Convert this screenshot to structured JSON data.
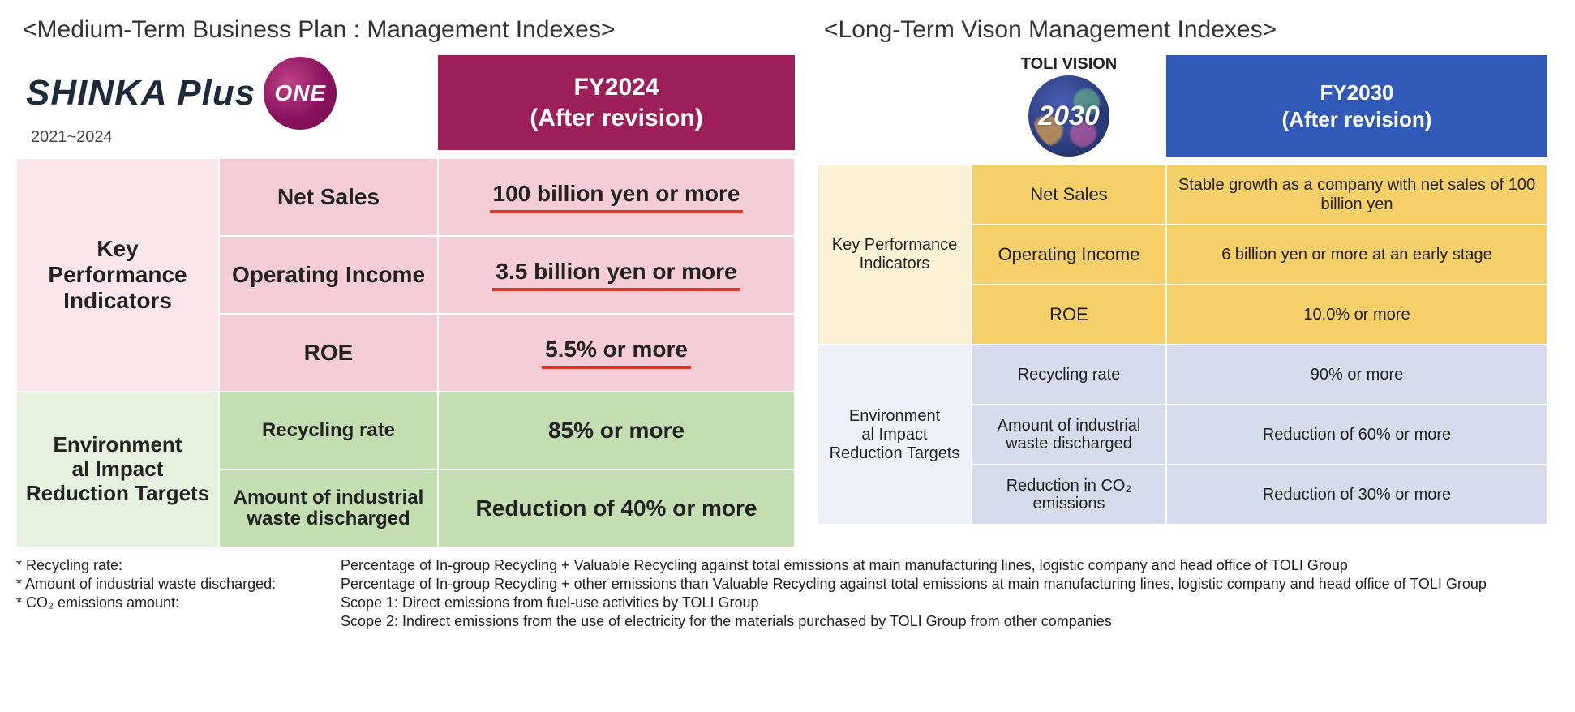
{
  "left": {
    "section_title": "<Medium-Term Business Plan : Management Indexes>",
    "logo": {
      "text": "SHINKA Plus",
      "badge": "ONE",
      "range": "2021~2024"
    },
    "header": "FY2024\n(After revision)",
    "kpi_category": "Key Performance Indicators",
    "env_category": "Environment\nal Impact Reduction Targets",
    "rows_kpi": [
      {
        "label": "Net Sales",
        "value": "100 billion yen or more"
      },
      {
        "label": "Operating Income",
        "value": "3.5 billion yen or more"
      },
      {
        "label": "ROE",
        "value": "5.5% or more"
      }
    ],
    "rows_env": [
      {
        "label": "Recycling rate",
        "value": "85% or more"
      },
      {
        "label": "Amount of industrial waste discharged",
        "value": "Reduction of 40% or more"
      }
    ],
    "colors": {
      "header_bg": "#9d1f5a",
      "pink_lt": "#fbe6ec",
      "pink": "#f5cdd6",
      "underline": "#e03030",
      "green_lt": "#e7f1df",
      "green": "#c3dfb1"
    }
  },
  "right": {
    "section_title": "<Long-Term Vison Management Indexes>",
    "vision": {
      "title": "TOLI VISION",
      "year": "2030"
    },
    "header": "FY2030\n(After revision)",
    "kpi_category": "Key Performance Indicators",
    "env_category": "Environment\nal Impact Reduction Targets",
    "rows_kpi": [
      {
        "label": "Net Sales",
        "value": "Stable growth as a company with net sales of 100 billion yen"
      },
      {
        "label": "Operating Income",
        "value": "6 billion yen or more at an early stage"
      },
      {
        "label": "ROE",
        "value": "10.0% or more"
      }
    ],
    "rows_env": [
      {
        "label": "Recycling rate",
        "value": "90% or more"
      },
      {
        "label": "Amount of industrial waste discharged",
        "value": "Reduction of 60% or more"
      },
      {
        "label": "Reduction in CO₂ emissions",
        "value": "Reduction of 30% or more"
      }
    ],
    "colors": {
      "header_bg": "#3159b7",
      "yellow_lt": "#fbf2d6",
      "yellow": "#f5cf67",
      "blue_lt": "#eef1f7",
      "blue": "#d6dceb"
    }
  },
  "footnotes": [
    {
      "label": "* Recycling rate:",
      "text": "Percentage of In-group Recycling + Valuable Recycling against total emissions at main manufacturing lines, logistic company and head office of TOLI Group"
    },
    {
      "label": "* Amount of industrial waste discharged:",
      "text": "Percentage of In-group Recycling + other emissions than Valuable Recycling against total emissions at main manufacturing lines, logistic company and head office of TOLI Group"
    },
    {
      "label": "* CO₂ emissions amount:",
      "text": "Scope 1: Direct emissions from fuel-use activities by TOLI Group"
    },
    {
      "label": "",
      "text": "Scope 2: Indirect emissions from the use of electricity for the materials purchased by TOLI Group from other companies"
    }
  ]
}
